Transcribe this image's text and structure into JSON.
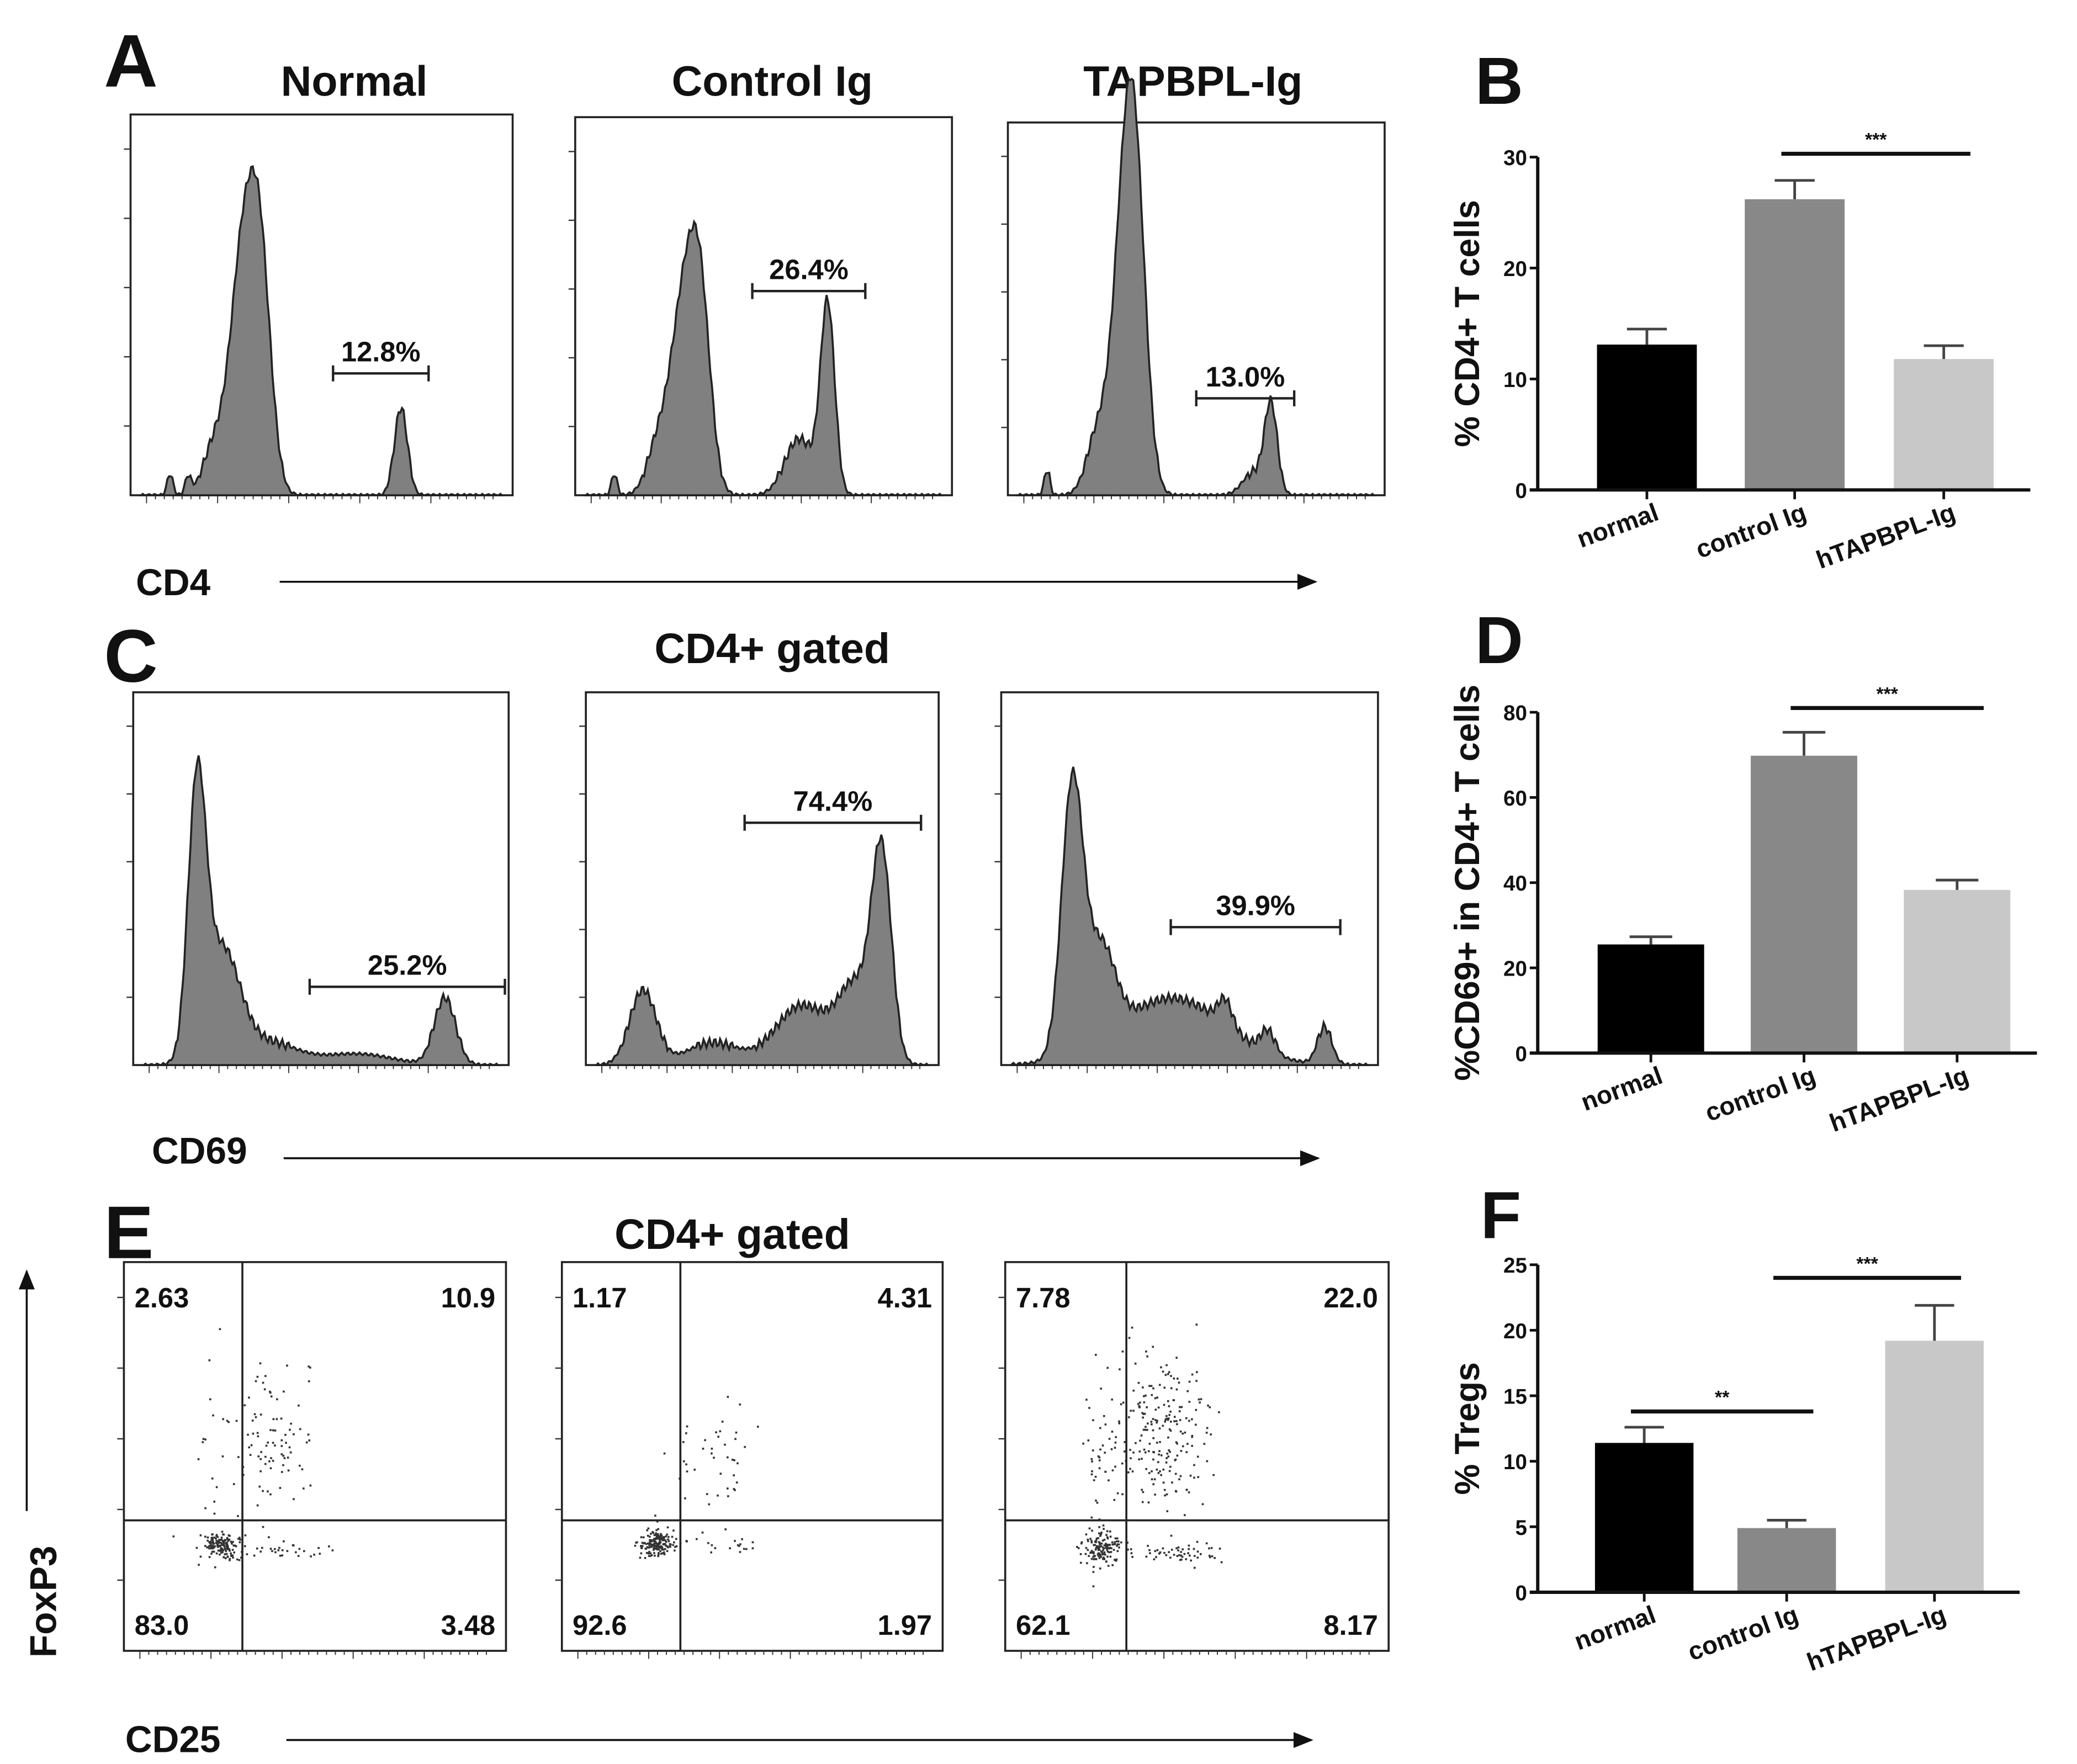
{
  "panel_labels": {
    "A": "A",
    "B": "B",
    "C": "C",
    "D": "D",
    "E": "E",
    "F": "F"
  },
  "panel_A": {
    "titles": [
      "Normal",
      "Control Ig",
      "TAPBPL-Ig"
    ],
    "gates": [
      "12.8%",
      "26.4%",
      "13.0%"
    ],
    "axis_label": "CD4"
  },
  "panel_C": {
    "title": "CD4+ gated",
    "gates": [
      "25.2%",
      "74.4%",
      "39.9%"
    ],
    "axis_label": "CD69"
  },
  "panel_E": {
    "title": "CD4+ gated",
    "y_label": "FoxP3",
    "x_label": "CD25",
    "quadrants": [
      {
        "ul": "2.63",
        "ur": "10.9",
        "ll": "83.0",
        "lr": "3.48"
      },
      {
        "ul": "1.17",
        "ur": "4.31",
        "ll": "92.6",
        "lr": "1.97"
      },
      {
        "ul": "7.78",
        "ur": "22.0",
        "ll": "62.1",
        "lr": "8.17"
      }
    ]
  },
  "colors": {
    "normal": "#000000",
    "control": "#888888",
    "tapbpl": "#c8c8c8",
    "hist_fill": "#808080"
  },
  "chart_data": [
    {
      "id": "B",
      "type": "bar",
      "categories": [
        "normal",
        "control Ig",
        "hTAPBPL-Ig"
      ],
      "values": [
        13.1,
        26.2,
        11.8
      ],
      "errors": [
        1.4,
        1.7,
        1.2
      ],
      "ylabel": "% CD4+ T cells",
      "ylim": [
        0,
        30
      ],
      "yticks": [
        "0",
        "10",
        "20",
        "30"
      ],
      "yticks_values": [
        0,
        10,
        20,
        30
      ],
      "significance": [
        {
          "from": 1,
          "to": 2,
          "label": "***",
          "y": 30.3
        }
      ]
    },
    {
      "id": "D",
      "type": "bar",
      "categories": [
        "normal",
        "control Ig",
        "hTAPBPL-Ig"
      ],
      "values": [
        25.5,
        69.8,
        38.3
      ],
      "errors": [
        1.8,
        5.5,
        2.3
      ],
      "ylabel": "%CD69+ in CD4+ T cells",
      "ylim": [
        0,
        80
      ],
      "yticks": [
        "0",
        "20",
        "40",
        "60",
        "80"
      ],
      "yticks_values": [
        0,
        20,
        40,
        60,
        80
      ],
      "significance": [
        {
          "from": 1,
          "to": 2,
          "label": "***",
          "y": 81
        }
      ]
    },
    {
      "id": "F",
      "type": "bar",
      "categories": [
        "normal",
        "control Ig",
        "hTAPBPL-Ig"
      ],
      "values": [
        11.4,
        4.9,
        19.2
      ],
      "errors": [
        1.2,
        0.6,
        2.7
      ],
      "ylabel": "% Tregs",
      "ylim": [
        0,
        25
      ],
      "yticks": [
        "0",
        "5",
        "10",
        "15",
        "20",
        "25"
      ],
      "yticks_values": [
        0,
        5,
        10,
        15,
        20,
        25
      ],
      "significance": [
        {
          "from": 0,
          "to": 1,
          "label": "**",
          "y": 13.8
        },
        {
          "from": 1,
          "to": 2,
          "label": "***",
          "y": 24
        }
      ]
    }
  ]
}
